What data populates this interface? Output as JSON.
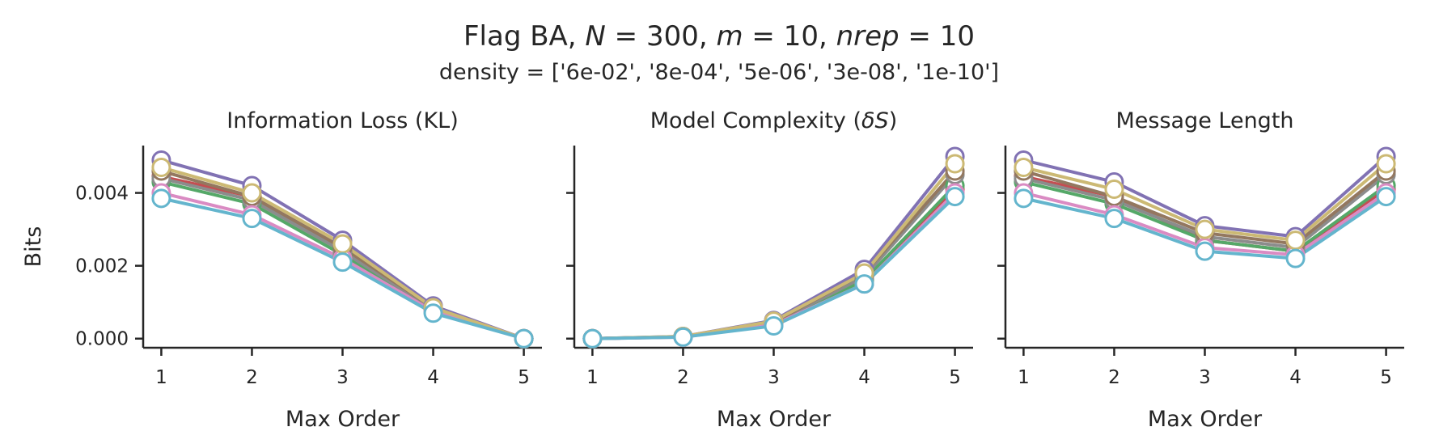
{
  "chart_data": {
    "type": "line",
    "title_lines": [
      "Flag BA, N = 300, m = 10, nrep = 10",
      "density = ['6e-02', '8e-04', '5e-06', '3e-08', '1e-10']"
    ],
    "title_parts": [
      {
        "text": "Flag BA, ",
        "italic": false
      },
      {
        "text": "N",
        "italic": true
      },
      {
        "text": " = 300, ",
        "italic": false
      },
      {
        "text": "m",
        "italic": true
      },
      {
        "text": " = 10, ",
        "italic": false
      },
      {
        "text": "nrep",
        "italic": true
      },
      {
        "text": " = 10",
        "italic": false
      }
    ],
    "subtitle": "density = ['6e-02', '8e-04', '5e-06', '3e-08', '1e-10']",
    "ylabel": "Bits",
    "ylim": [
      -0.00025,
      0.0053
    ],
    "yticks": [
      0.0,
      0.002,
      0.004
    ],
    "ytick_labels": [
      "0.000",
      "0.002",
      "0.004"
    ],
    "x": [
      1,
      2,
      3,
      4,
      5
    ],
    "xtick_labels": [
      "1",
      "2",
      "3",
      "4",
      "5"
    ],
    "xlim": [
      0.8,
      5.2
    ],
    "grid": false,
    "legend": "none",
    "panels": [
      {
        "title_parts": [
          {
            "text": "Information Loss (KL)",
            "italic": false
          }
        ],
        "title": "Information Loss (KL)",
        "xlabel": "Max Order",
        "series": [
          {
            "color": "#c44e52",
            "values": [
              0.00445,
              0.0039,
              0.0024,
              0.00085,
              0.0
            ]
          },
          {
            "color": "#55a868",
            "values": [
              0.0043,
              0.0037,
              0.0023,
              0.0008,
              0.0
            ]
          },
          {
            "color": "#8c8c8c",
            "values": [
              0.0044,
              0.0038,
              0.0024,
              0.0008,
              0.0
            ]
          },
          {
            "color": "#937860",
            "values": [
              0.0046,
              0.0039,
              0.0025,
              0.00085,
              0.0
            ]
          },
          {
            "color": "#da8bc3",
            "values": [
              0.004,
              0.0034,
              0.0022,
              0.00075,
              0.0
            ]
          },
          {
            "color": "#8172b3",
            "values": [
              0.0049,
              0.0042,
              0.0027,
              0.0009,
              0.0
            ]
          },
          {
            "color": "#ccb974",
            "values": [
              0.0047,
              0.004,
              0.0026,
              0.00085,
              0.0
            ]
          },
          {
            "color": "#64b5cd",
            "values": [
              0.00385,
              0.0033,
              0.0021,
              0.0007,
              0.0
            ]
          }
        ]
      },
      {
        "title_parts": [
          {
            "text": "Model Complexity (",
            "italic": false
          },
          {
            "text": "δS",
            "italic": true
          },
          {
            "text": ")",
            "italic": false
          }
        ],
        "title": "Model Complexity (δS)",
        "xlabel": "Max Order",
        "series": [
          {
            "color": "#c44e52",
            "values": [
              0.0,
              5e-05,
              0.0004,
              0.0016,
              0.0041
            ]
          },
          {
            "color": "#55a868",
            "values": [
              0.0,
              5e-05,
              0.0004,
              0.0016,
              0.0042
            ]
          },
          {
            "color": "#8c8c8c",
            "values": [
              0.0,
              5e-05,
              0.00042,
              0.0017,
              0.0045
            ]
          },
          {
            "color": "#937860",
            "values": [
              0.0,
              5e-05,
              0.00045,
              0.0018,
              0.0046
            ]
          },
          {
            "color": "#da8bc3",
            "values": [
              0.0,
              4e-05,
              0.00038,
              0.0015,
              0.004
            ]
          },
          {
            "color": "#8172b3",
            "values": [
              0.0,
              6e-05,
              0.0005,
              0.0019,
              0.005
            ]
          },
          {
            "color": "#ccb974",
            "values": [
              0.0,
              6e-05,
              0.00048,
              0.0018,
              0.0048
            ]
          },
          {
            "color": "#64b5cd",
            "values": [
              0.0,
              4e-05,
              0.00035,
              0.0015,
              0.0039
            ]
          }
        ]
      },
      {
        "title_parts": [
          {
            "text": "Message Length",
            "italic": false
          }
        ],
        "title": "Message Length",
        "xlabel": "Max Order",
        "series": [
          {
            "color": "#c44e52",
            "values": [
              0.00445,
              0.0039,
              0.0027,
              0.0024,
              0.0041
            ]
          },
          {
            "color": "#55a868",
            "values": [
              0.0043,
              0.0037,
              0.0027,
              0.0024,
              0.0042
            ]
          },
          {
            "color": "#8c8c8c",
            "values": [
              0.0044,
              0.0038,
              0.0028,
              0.0025,
              0.0045
            ]
          },
          {
            "color": "#937860",
            "values": [
              0.0046,
              0.0039,
              0.0029,
              0.0026,
              0.0046
            ]
          },
          {
            "color": "#da8bc3",
            "values": [
              0.004,
              0.0034,
              0.0025,
              0.0023,
              0.004
            ]
          },
          {
            "color": "#8172b3",
            "values": [
              0.0049,
              0.0043,
              0.0031,
              0.0028,
              0.005
            ]
          },
          {
            "color": "#ccb974",
            "values": [
              0.0047,
              0.0041,
              0.003,
              0.0027,
              0.0048
            ]
          },
          {
            "color": "#64b5cd",
            "values": [
              0.00385,
              0.0033,
              0.0024,
              0.0022,
              0.0039
            ]
          }
        ]
      }
    ]
  }
}
